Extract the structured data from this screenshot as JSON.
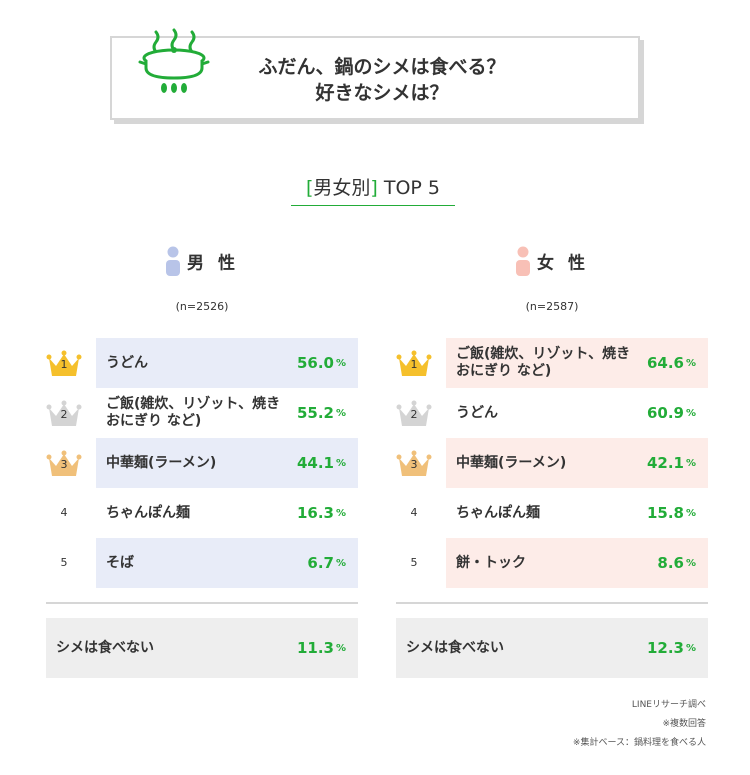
{
  "title_lines": [
    "ふだん、鍋のシメは食べる？",
    "好きなシメは？"
  ],
  "subtitle": {
    "bracket_open": "[",
    "text": "男女別",
    "bracket_close": "]",
    "suffix": " TOP 5"
  },
  "colors": {
    "accent": "#22ac38",
    "male_row": "#e8ecf8",
    "female_row": "#fdece8",
    "gold": "#f5c02c",
    "silver": "#d4d4d4",
    "bronze": "#f0c07a",
    "male_icon": "#b8c4e8",
    "female_icon": "#f8c0b6"
  },
  "pct_symbol": "%",
  "chart_data": [
    {
      "type": "table",
      "group": "男 性",
      "n": "(n=2526)",
      "ranks": [
        "1",
        "2",
        "3",
        "4",
        "5"
      ],
      "categories": [
        "うどん",
        "ご飯(雑炊、リゾット、焼きおにぎり など)",
        "中華麺(ラーメン)",
        "ちゃんぽん麺",
        "そば"
      ],
      "values": [
        56.0,
        55.2,
        44.1,
        16.3,
        6.7
      ],
      "none": {
        "label": "シメは食べない",
        "value": 11.3
      }
    },
    {
      "type": "table",
      "group": "女 性",
      "n": "(n=2587)",
      "ranks": [
        "1",
        "2",
        "3",
        "4",
        "5"
      ],
      "categories": [
        "ご飯(雑炊、リゾット、焼きおにぎり など)",
        "うどん",
        "中華麺(ラーメン)",
        "ちゃんぽん麺",
        "餅・トック"
      ],
      "values": [
        64.6,
        60.9,
        42.1,
        15.8,
        8.6
      ],
      "none": {
        "label": "シメは食べない",
        "value": 12.3
      }
    }
  ],
  "notes": [
    "LINEリサーチ調べ",
    "※複数回答",
    "※集計ベース：鍋料理を食べる人"
  ]
}
